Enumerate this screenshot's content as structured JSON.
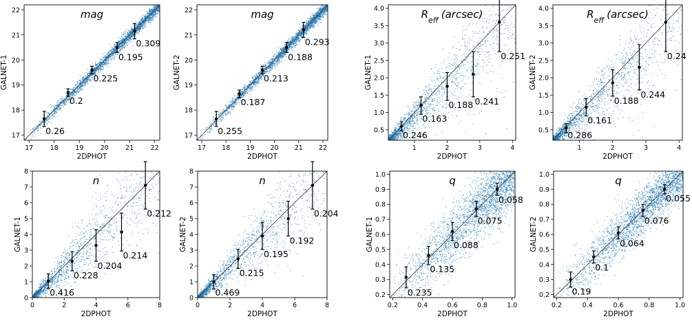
{
  "chart_data": [
    {
      "type": "scatter",
      "title": "mag",
      "xlabel": "2DPHOT",
      "ylabel": "GALNET-1",
      "xlim": [
        16.8,
        22.2
      ],
      "ylim": [
        16.8,
        22.2
      ],
      "xticks": [
        17,
        18,
        19,
        20,
        21,
        22
      ],
      "yticks": [
        17,
        18,
        19,
        20,
        21,
        22
      ],
      "spread": 0.12,
      "density": "high",
      "points": [
        {
          "x": 17.6,
          "y": 17.65,
          "err": 0.3,
          "label": "0.26"
        },
        {
          "x": 18.55,
          "y": 18.7,
          "err": 0.15,
          "label": "0.2"
        },
        {
          "x": 19.5,
          "y": 19.6,
          "err": 0.15,
          "label": "0.225"
        },
        {
          "x": 20.5,
          "y": 20.5,
          "err": 0.2,
          "label": "0.195"
        },
        {
          "x": 21.2,
          "y": 21.15,
          "err": 0.3,
          "label": "0.309"
        }
      ]
    },
    {
      "type": "scatter",
      "title": "mag",
      "xlabel": "2DPHOT",
      "ylabel": "GALNET-2",
      "xlim": [
        16.8,
        22.2
      ],
      "ylim": [
        16.8,
        22.2
      ],
      "xticks": [
        17,
        18,
        19,
        20,
        21,
        22
      ],
      "yticks": [
        17,
        18,
        19,
        20,
        21,
        22
      ],
      "spread": 0.12,
      "density": "high",
      "points": [
        {
          "x": 17.6,
          "y": 17.65,
          "err": 0.3,
          "label": "0.255"
        },
        {
          "x": 18.55,
          "y": 18.65,
          "err": 0.15,
          "label": "0.187"
        },
        {
          "x": 19.5,
          "y": 19.6,
          "err": 0.15,
          "label": "0.213"
        },
        {
          "x": 20.5,
          "y": 20.5,
          "err": 0.2,
          "label": "0.188"
        },
        {
          "x": 21.2,
          "y": 21.2,
          "err": 0.3,
          "label": "0.293"
        }
      ]
    },
    {
      "type": "scatter",
      "title": "R_eff (arcsec)",
      "xlabel": "2DPHOT",
      "ylabel": "GALNET-1",
      "xlim": [
        0.2,
        4.1
      ],
      "ylim": [
        0.2,
        4.1
      ],
      "xticks": [
        1,
        2,
        3,
        4
      ],
      "yticks": [
        0.5,
        1.0,
        1.5,
        2.0,
        2.5,
        3.0,
        3.5,
        4.0
      ],
      "spread": 0.18,
      "density": "low",
      "points": [
        {
          "x": 0.6,
          "y": 0.6,
          "err": 0.13,
          "label": "0.246"
        },
        {
          "x": 1.2,
          "y": 1.2,
          "err": 0.25,
          "label": "0.163"
        },
        {
          "x": 2.0,
          "y": 1.75,
          "err": 0.4,
          "label": "0.188"
        },
        {
          "x": 2.8,
          "y": 2.1,
          "err": 0.65,
          "label": "0.241"
        },
        {
          "x": 3.6,
          "y": 3.6,
          "err": 0.85,
          "label": "0.251"
        }
      ]
    },
    {
      "type": "scatter",
      "title": "R_eff (arcsec)",
      "xlabel": "2DPHOT",
      "ylabel": "GALNET-2",
      "xlim": [
        0.2,
        4.1
      ],
      "ylim": [
        0.2,
        4.1
      ],
      "xticks": [
        1,
        2,
        3,
        4
      ],
      "yticks": [
        0.5,
        1.0,
        1.5,
        2.0,
        2.5,
        3.0,
        3.5,
        4.0
      ],
      "spread": 0.18,
      "density": "low",
      "points": [
        {
          "x": 0.6,
          "y": 0.55,
          "err": 0.13,
          "label": "0.286"
        },
        {
          "x": 1.2,
          "y": 1.15,
          "err": 0.25,
          "label": "0.161"
        },
        {
          "x": 2.0,
          "y": 1.85,
          "err": 0.38,
          "label": "0.188"
        },
        {
          "x": 2.8,
          "y": 2.3,
          "err": 0.65,
          "label": "0.244"
        },
        {
          "x": 3.6,
          "y": 3.6,
          "err": 0.85,
          "label": "0.24"
        }
      ]
    },
    {
      "type": "scatter",
      "title": "n",
      "xlabel": "2DPHOT",
      "ylabel": "GALNET-1",
      "xlim": [
        0,
        8
      ],
      "ylim": [
        0,
        8
      ],
      "xticks": [
        0,
        2,
        4,
        6,
        8
      ],
      "yticks": [
        0,
        1,
        2,
        3,
        4,
        5,
        6,
        7,
        8
      ],
      "spread": 0.25,
      "density": "low",
      "points": [
        {
          "x": 1.0,
          "y": 1.05,
          "err": 0.45,
          "label": "0.416"
        },
        {
          "x": 2.5,
          "y": 2.3,
          "err": 0.6,
          "label": "0.228"
        },
        {
          "x": 4.0,
          "y": 3.3,
          "err": 1.0,
          "label": "0.204"
        },
        {
          "x": 5.6,
          "y": 4.15,
          "err": 1.2,
          "label": "0.214"
        },
        {
          "x": 7.1,
          "y": 7.1,
          "err": 1.5,
          "label": "0.212"
        }
      ]
    },
    {
      "type": "scatter",
      "title": "n",
      "xlabel": "2DPHOT",
      "ylabel": "GALNET-2",
      "xlim": [
        0,
        8
      ],
      "ylim": [
        0,
        8
      ],
      "xticks": [
        0,
        2,
        4,
        6,
        8
      ],
      "yticks": [
        0,
        1,
        2,
        3,
        4,
        5,
        6,
        7,
        8
      ],
      "spread": 0.22,
      "density": "low",
      "points": [
        {
          "x": 1.0,
          "y": 1.0,
          "err": 0.45,
          "label": "0.469"
        },
        {
          "x": 2.5,
          "y": 2.45,
          "err": 0.6,
          "label": "0.215"
        },
        {
          "x": 4.0,
          "y": 3.9,
          "err": 0.85,
          "label": "0.195"
        },
        {
          "x": 5.6,
          "y": 5.0,
          "err": 1.1,
          "label": "0.192"
        },
        {
          "x": 7.1,
          "y": 7.1,
          "err": 1.5,
          "label": "0.204"
        }
      ]
    },
    {
      "type": "scatter",
      "title": "q",
      "xlabel": "2DPHOT",
      "ylabel": "GALNET-1",
      "xlim": [
        0.18,
        1.02
      ],
      "ylim": [
        0.18,
        1.02
      ],
      "xticks": [
        0.2,
        0.4,
        0.6,
        0.8,
        1.0
      ],
      "yticks": [
        0.2,
        0.3,
        0.4,
        0.5,
        0.6,
        0.7,
        0.8,
        0.9,
        1.0
      ],
      "spread": 0.1,
      "density": "high",
      "points": [
        {
          "x": 0.29,
          "y": 0.315,
          "err": 0.07,
          "label": "0.235"
        },
        {
          "x": 0.44,
          "y": 0.46,
          "err": 0.06,
          "label": "0.135"
        },
        {
          "x": 0.6,
          "y": 0.62,
          "err": 0.06,
          "label": "0.088"
        },
        {
          "x": 0.76,
          "y": 0.77,
          "err": 0.05,
          "label": "0.075"
        },
        {
          "x": 0.9,
          "y": 0.9,
          "err": 0.04,
          "label": "0.058"
        }
      ]
    },
    {
      "type": "scatter",
      "title": "q",
      "xlabel": "2DPHOT",
      "ylabel": "GALNET-2",
      "xlim": [
        0.18,
        1.02
      ],
      "ylim": [
        0.18,
        1.02
      ],
      "xticks": [
        0.2,
        0.4,
        0.6,
        0.8,
        1.0
      ],
      "yticks": [
        0.2,
        0.3,
        0.4,
        0.5,
        0.6,
        0.7,
        0.8,
        0.9,
        1.0
      ],
      "spread": 0.08,
      "density": "high",
      "points": [
        {
          "x": 0.29,
          "y": 0.3,
          "err": 0.05,
          "label": "0.19"
        },
        {
          "x": 0.44,
          "y": 0.45,
          "err": 0.04,
          "label": "0.1"
        },
        {
          "x": 0.6,
          "y": 0.61,
          "err": 0.04,
          "label": "0.064"
        },
        {
          "x": 0.76,
          "y": 0.76,
          "err": 0.04,
          "label": "0.076"
        },
        {
          "x": 0.9,
          "y": 0.9,
          "err": 0.03,
          "label": "0.055"
        }
      ]
    }
  ],
  "colors": {
    "scatter": "#1f77b4",
    "errorbar": "#000000",
    "diagonal": "#444444"
  }
}
